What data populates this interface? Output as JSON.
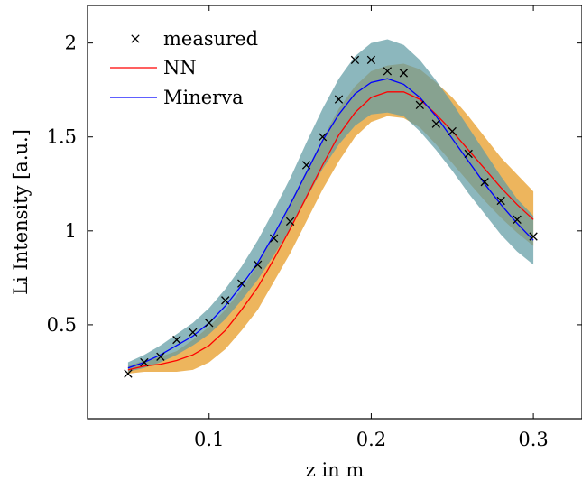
{
  "chart_data": {
    "type": "line",
    "title": "",
    "xlabel": "z in m",
    "ylabel": "Li Intensity [a.u.]",
    "xlim": [
      0.025,
      0.33
    ],
    "ylim": [
      0.0,
      2.2
    ],
    "x_ticks": [
      0.1,
      0.2,
      0.3
    ],
    "x_tick_labels": [
      "0.1",
      "0.2",
      "0.3"
    ],
    "y_ticks": [
      0.5,
      1.0,
      1.5,
      2.0
    ],
    "y_tick_labels": [
      "0.5",
      "1",
      "1.5",
      "2"
    ],
    "grid": false,
    "legend_position": "top-left",
    "legend": [
      "measured",
      "NN",
      "Minerva"
    ],
    "series": [
      {
        "name": "measured",
        "kind": "scatter",
        "marker": "x",
        "color": "#000000",
        "x": [
          0.05,
          0.06,
          0.07,
          0.08,
          0.09,
          0.1,
          0.11,
          0.12,
          0.13,
          0.14,
          0.15,
          0.16,
          0.17,
          0.18,
          0.19,
          0.2,
          0.21,
          0.22,
          0.23,
          0.24,
          0.25,
          0.26,
          0.27,
          0.28,
          0.29,
          0.3
        ],
        "y": [
          0.24,
          0.3,
          0.33,
          0.42,
          0.46,
          0.51,
          0.63,
          0.72,
          0.82,
          0.96,
          1.05,
          1.35,
          1.5,
          1.7,
          1.91,
          1.91,
          1.85,
          1.84,
          1.67,
          1.57,
          1.53,
          1.41,
          1.26,
          1.16,
          1.06,
          0.97
        ]
      },
      {
        "name": "NN",
        "kind": "line",
        "color": "#ff0000",
        "band_color": "#e8a235",
        "x": [
          0.05,
          0.06,
          0.07,
          0.08,
          0.09,
          0.1,
          0.11,
          0.12,
          0.13,
          0.14,
          0.15,
          0.16,
          0.17,
          0.18,
          0.19,
          0.2,
          0.21,
          0.22,
          0.23,
          0.24,
          0.25,
          0.26,
          0.27,
          0.28,
          0.29,
          0.3
        ],
        "y": [
          0.26,
          0.28,
          0.29,
          0.31,
          0.34,
          0.39,
          0.47,
          0.58,
          0.7,
          0.85,
          1.01,
          1.18,
          1.35,
          1.51,
          1.63,
          1.71,
          1.74,
          1.74,
          1.7,
          1.62,
          1.53,
          1.43,
          1.33,
          1.23,
          1.14,
          1.06
        ],
        "lower": [
          0.24,
          0.25,
          0.25,
          0.25,
          0.26,
          0.3,
          0.37,
          0.47,
          0.58,
          0.73,
          0.88,
          1.05,
          1.22,
          1.37,
          1.5,
          1.58,
          1.61,
          1.6,
          1.55,
          1.46,
          1.36,
          1.26,
          1.16,
          1.07,
          0.99,
          0.92
        ],
        "upper": [
          0.28,
          0.31,
          0.33,
          0.36,
          0.42,
          0.49,
          0.58,
          0.69,
          0.82,
          0.98,
          1.15,
          1.32,
          1.49,
          1.65,
          1.77,
          1.85,
          1.88,
          1.89,
          1.86,
          1.79,
          1.71,
          1.61,
          1.5,
          1.39,
          1.3,
          1.21
        ]
      },
      {
        "name": "Minerva",
        "kind": "line",
        "color": "#0000ff",
        "band_color": "#5f9ba3",
        "x": [
          0.05,
          0.06,
          0.07,
          0.08,
          0.09,
          0.1,
          0.11,
          0.12,
          0.13,
          0.14,
          0.15,
          0.16,
          0.17,
          0.18,
          0.19,
          0.2,
          0.21,
          0.22,
          0.23,
          0.24,
          0.25,
          0.26,
          0.27,
          0.28,
          0.29,
          0.3
        ],
        "y": [
          0.27,
          0.3,
          0.34,
          0.39,
          0.44,
          0.51,
          0.6,
          0.71,
          0.83,
          0.98,
          1.14,
          1.31,
          1.48,
          1.62,
          1.73,
          1.79,
          1.81,
          1.78,
          1.71,
          1.61,
          1.49,
          1.37,
          1.25,
          1.14,
          1.04,
          0.95
        ],
        "lower": [
          0.25,
          0.27,
          0.3,
          0.34,
          0.39,
          0.45,
          0.53,
          0.63,
          0.74,
          0.87,
          1.01,
          1.17,
          1.33,
          1.46,
          1.56,
          1.62,
          1.63,
          1.61,
          1.53,
          1.43,
          1.32,
          1.2,
          1.09,
          0.98,
          0.89,
          0.82
        ],
        "upper": [
          0.3,
          0.34,
          0.39,
          0.45,
          0.51,
          0.59,
          0.69,
          0.81,
          0.95,
          1.11,
          1.28,
          1.47,
          1.65,
          1.81,
          1.93,
          2.0,
          2.02,
          1.99,
          1.91,
          1.8,
          1.68,
          1.55,
          1.42,
          1.29,
          1.17,
          1.08
        ]
      }
    ]
  }
}
